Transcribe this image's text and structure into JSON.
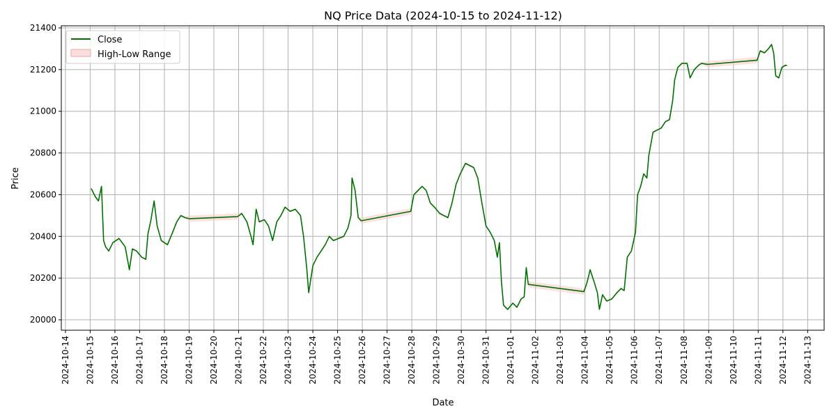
{
  "chart_data": {
    "type": "line",
    "title": "NQ Price Data (2024-10-15 to 2024-11-12)",
    "xlabel": "Date",
    "ylabel": "Price",
    "ylim": [
      19950,
      21410
    ],
    "xlim": [
      "2024-10-13 20:00",
      "2024-11-13 16:00"
    ],
    "grid": true,
    "legend_position": "top-left",
    "y_ticks": [
      20000,
      20200,
      20400,
      20600,
      20800,
      21000,
      21200,
      21400
    ],
    "x_ticks": [
      "2024-10-14",
      "2024-10-15",
      "2024-10-16",
      "2024-10-17",
      "2024-10-18",
      "2024-10-19",
      "2024-10-20",
      "2024-10-21",
      "2024-10-22",
      "2024-10-23",
      "2024-10-24",
      "2024-10-25",
      "2024-10-26",
      "2024-10-27",
      "2024-10-28",
      "2024-10-29",
      "2024-10-30",
      "2024-10-31",
      "2024-11-01",
      "2024-11-02",
      "2024-11-03",
      "2024-11-04",
      "2024-11-05",
      "2024-11-06",
      "2024-11-07",
      "2024-11-08",
      "2024-11-09",
      "2024-11-10",
      "2024-11-11",
      "2024-11-12",
      "2024-11-13"
    ],
    "colors": {
      "close": "#007000",
      "range_fill": "#f7c8c8",
      "range_edge": "#f0a8a8",
      "grid": "#b0b0b0"
    },
    "series": [
      {
        "name": "Close",
        "style": "line",
        "points": [
          [
            "2024-10-15 01:00",
            20630
          ],
          [
            "2024-10-15 05:00",
            20590
          ],
          [
            "2024-10-15 08:00",
            20570
          ],
          [
            "2024-10-15 11:00",
            20640
          ],
          [
            "2024-10-15 13:00",
            20380
          ],
          [
            "2024-10-15 15:00",
            20350
          ],
          [
            "2024-10-15 18:00",
            20330
          ],
          [
            "2024-10-15 22:00",
            20370
          ],
          [
            "2024-10-16 04:00",
            20390
          ],
          [
            "2024-10-16 10:00",
            20350
          ],
          [
            "2024-10-16 14:00",
            20240
          ],
          [
            "2024-10-16 17:00",
            20340
          ],
          [
            "2024-10-16 21:00",
            20330
          ],
          [
            "2024-10-17 02:00",
            20300
          ],
          [
            "2024-10-17 06:00",
            20290
          ],
          [
            "2024-10-17 08:00",
            20410
          ],
          [
            "2024-10-17 11:00",
            20480
          ],
          [
            "2024-10-17 14:00",
            20570
          ],
          [
            "2024-10-17 17:00",
            20450
          ],
          [
            "2024-10-17 21:00",
            20380
          ],
          [
            "2024-10-18 03:00",
            20360
          ],
          [
            "2024-10-18 08:00",
            20420
          ],
          [
            "2024-10-18 12:00",
            20470
          ],
          [
            "2024-10-18 16:00",
            20500
          ],
          [
            "2024-10-18 20:00",
            20490
          ],
          [
            "2024-10-19 00:00",
            20485
          ],
          [
            "2024-10-20 23:00",
            20495
          ],
          [
            "2024-10-21 03:00",
            20510
          ],
          [
            "2024-10-21 08:00",
            20470
          ],
          [
            "2024-10-21 12:00",
            20400
          ],
          [
            "2024-10-21 14:00",
            20360
          ],
          [
            "2024-10-21 17:00",
            20530
          ],
          [
            "2024-10-21 20:00",
            20470
          ],
          [
            "2024-10-22 01:00",
            20480
          ],
          [
            "2024-10-22 05:00",
            20450
          ],
          [
            "2024-10-22 09:00",
            20380
          ],
          [
            "2024-10-22 13:00",
            20470
          ],
          [
            "2024-10-22 17:00",
            20500
          ],
          [
            "2024-10-22 21:00",
            20540
          ],
          [
            "2024-10-23 02:00",
            20520
          ],
          [
            "2024-10-23 07:00",
            20530
          ],
          [
            "2024-10-23 12:00",
            20500
          ],
          [
            "2024-10-23 15:00",
            20400
          ],
          [
            "2024-10-23 18:00",
            20250
          ],
          [
            "2024-10-23 20:00",
            20130
          ],
          [
            "2024-10-24 00:00",
            20260
          ],
          [
            "2024-10-24 04:00",
            20300
          ],
          [
            "2024-10-24 08:00",
            20330
          ],
          [
            "2024-10-24 12:00",
            20360
          ],
          [
            "2024-10-24 16:00",
            20400
          ],
          [
            "2024-10-24 20:00",
            20380
          ],
          [
            "2024-10-25 01:00",
            20390
          ],
          [
            "2024-10-25 06:00",
            20400
          ],
          [
            "2024-10-25 10:00",
            20440
          ],
          [
            "2024-10-25 13:00",
            20500
          ],
          [
            "2024-10-25 14:00",
            20680
          ],
          [
            "2024-10-25 17:00",
            20620
          ],
          [
            "2024-10-25 20:00",
            20490
          ],
          [
            "2024-10-25 23:00",
            20475
          ],
          [
            "2024-10-27 23:00",
            20520
          ],
          [
            "2024-10-28 02:00",
            20600
          ],
          [
            "2024-10-28 06:00",
            20620
          ],
          [
            "2024-10-28 10:00",
            20640
          ],
          [
            "2024-10-28 14:00",
            20620
          ],
          [
            "2024-10-28 18:00",
            20560
          ],
          [
            "2024-10-28 22:00",
            20540
          ],
          [
            "2024-10-29 03:00",
            20510
          ],
          [
            "2024-10-29 07:00",
            20500
          ],
          [
            "2024-10-29 11:00",
            20490
          ],
          [
            "2024-10-29 15:00",
            20560
          ],
          [
            "2024-10-29 19:00",
            20650
          ],
          [
            "2024-10-29 23:00",
            20700
          ],
          [
            "2024-10-30 04:00",
            20750
          ],
          [
            "2024-10-30 08:00",
            20740
          ],
          [
            "2024-10-30 12:00",
            20730
          ],
          [
            "2024-10-30 16:00",
            20680
          ],
          [
            "2024-10-30 20:00",
            20560
          ],
          [
            "2024-10-31 00:00",
            20450
          ],
          [
            "2024-10-31 04:00",
            20420
          ],
          [
            "2024-10-31 08:00",
            20380
          ],
          [
            "2024-10-31 11:00",
            20300
          ],
          [
            "2024-10-31 13:00",
            20370
          ],
          [
            "2024-10-31 15:00",
            20180
          ],
          [
            "2024-10-31 17:00",
            20070
          ],
          [
            "2024-10-31 21:00",
            20050
          ],
          [
            "2024-11-01 02:00",
            20080
          ],
          [
            "2024-11-01 06:00",
            20060
          ],
          [
            "2024-11-01 10:00",
            20100
          ],
          [
            "2024-11-01 13:00",
            20110
          ],
          [
            "2024-11-01 15:00",
            20250
          ],
          [
            "2024-11-01 17:00",
            20170
          ],
          [
            "2024-11-03 23:00",
            20135
          ],
          [
            "2024-11-04 02:00",
            20180
          ],
          [
            "2024-11-04 05:00",
            20240
          ],
          [
            "2024-11-04 09:00",
            20180
          ],
          [
            "2024-11-04 12:00",
            20130
          ],
          [
            "2024-11-04 14:00",
            20050
          ],
          [
            "2024-11-04 17:00",
            20120
          ],
          [
            "2024-11-04 21:00",
            20090
          ],
          [
            "2024-11-05 02:00",
            20100
          ],
          [
            "2024-11-05 07:00",
            20130
          ],
          [
            "2024-11-05 11:00",
            20150
          ],
          [
            "2024-11-05 14:00",
            20140
          ],
          [
            "2024-11-05 17:00",
            20300
          ],
          [
            "2024-11-05 21:00",
            20330
          ],
          [
            "2024-11-06 01:00",
            20420
          ],
          [
            "2024-11-06 03:00",
            20600
          ],
          [
            "2024-11-06 06:00",
            20640
          ],
          [
            "2024-11-06 09:00",
            20700
          ],
          [
            "2024-11-06 12:00",
            20680
          ],
          [
            "2024-11-06 14:00",
            20790
          ],
          [
            "2024-11-06 18:00",
            20900
          ],
          [
            "2024-11-06 22:00",
            20910
          ],
          [
            "2024-11-07 02:00",
            20920
          ],
          [
            "2024-11-07 06:00",
            20950
          ],
          [
            "2024-11-07 10:00",
            20960
          ],
          [
            "2024-11-07 13:00",
            21050
          ],
          [
            "2024-11-07 15:00",
            21150
          ],
          [
            "2024-11-07 18:00",
            21210
          ],
          [
            "2024-11-07 22:00",
            21230
          ],
          [
            "2024-11-08 03:00",
            21230
          ],
          [
            "2024-11-08 06:00",
            21160
          ],
          [
            "2024-11-08 10:00",
            21200
          ],
          [
            "2024-11-08 14:00",
            21220
          ],
          [
            "2024-11-08 17:00",
            21230
          ],
          [
            "2024-11-08 23:00",
            21225
          ],
          [
            "2024-11-10 23:00",
            21245
          ],
          [
            "2024-11-11 02:00",
            21290
          ],
          [
            "2024-11-11 06:00",
            21280
          ],
          [
            "2024-11-11 10:00",
            21300
          ],
          [
            "2024-11-11 13:00",
            21320
          ],
          [
            "2024-11-11 15:00",
            21280
          ],
          [
            "2024-11-11 17:00",
            21170
          ],
          [
            "2024-11-11 20:00",
            21160
          ],
          [
            "2024-11-11 23:00",
            21210
          ],
          [
            "2024-11-12 02:00",
            21220
          ],
          [
            "2024-11-12 04:00",
            21220
          ]
        ]
      },
      {
        "name": "High-Low Range",
        "style": "fill_between",
        "typical_half_width": 5,
        "gap_half_width": 15
      }
    ]
  }
}
